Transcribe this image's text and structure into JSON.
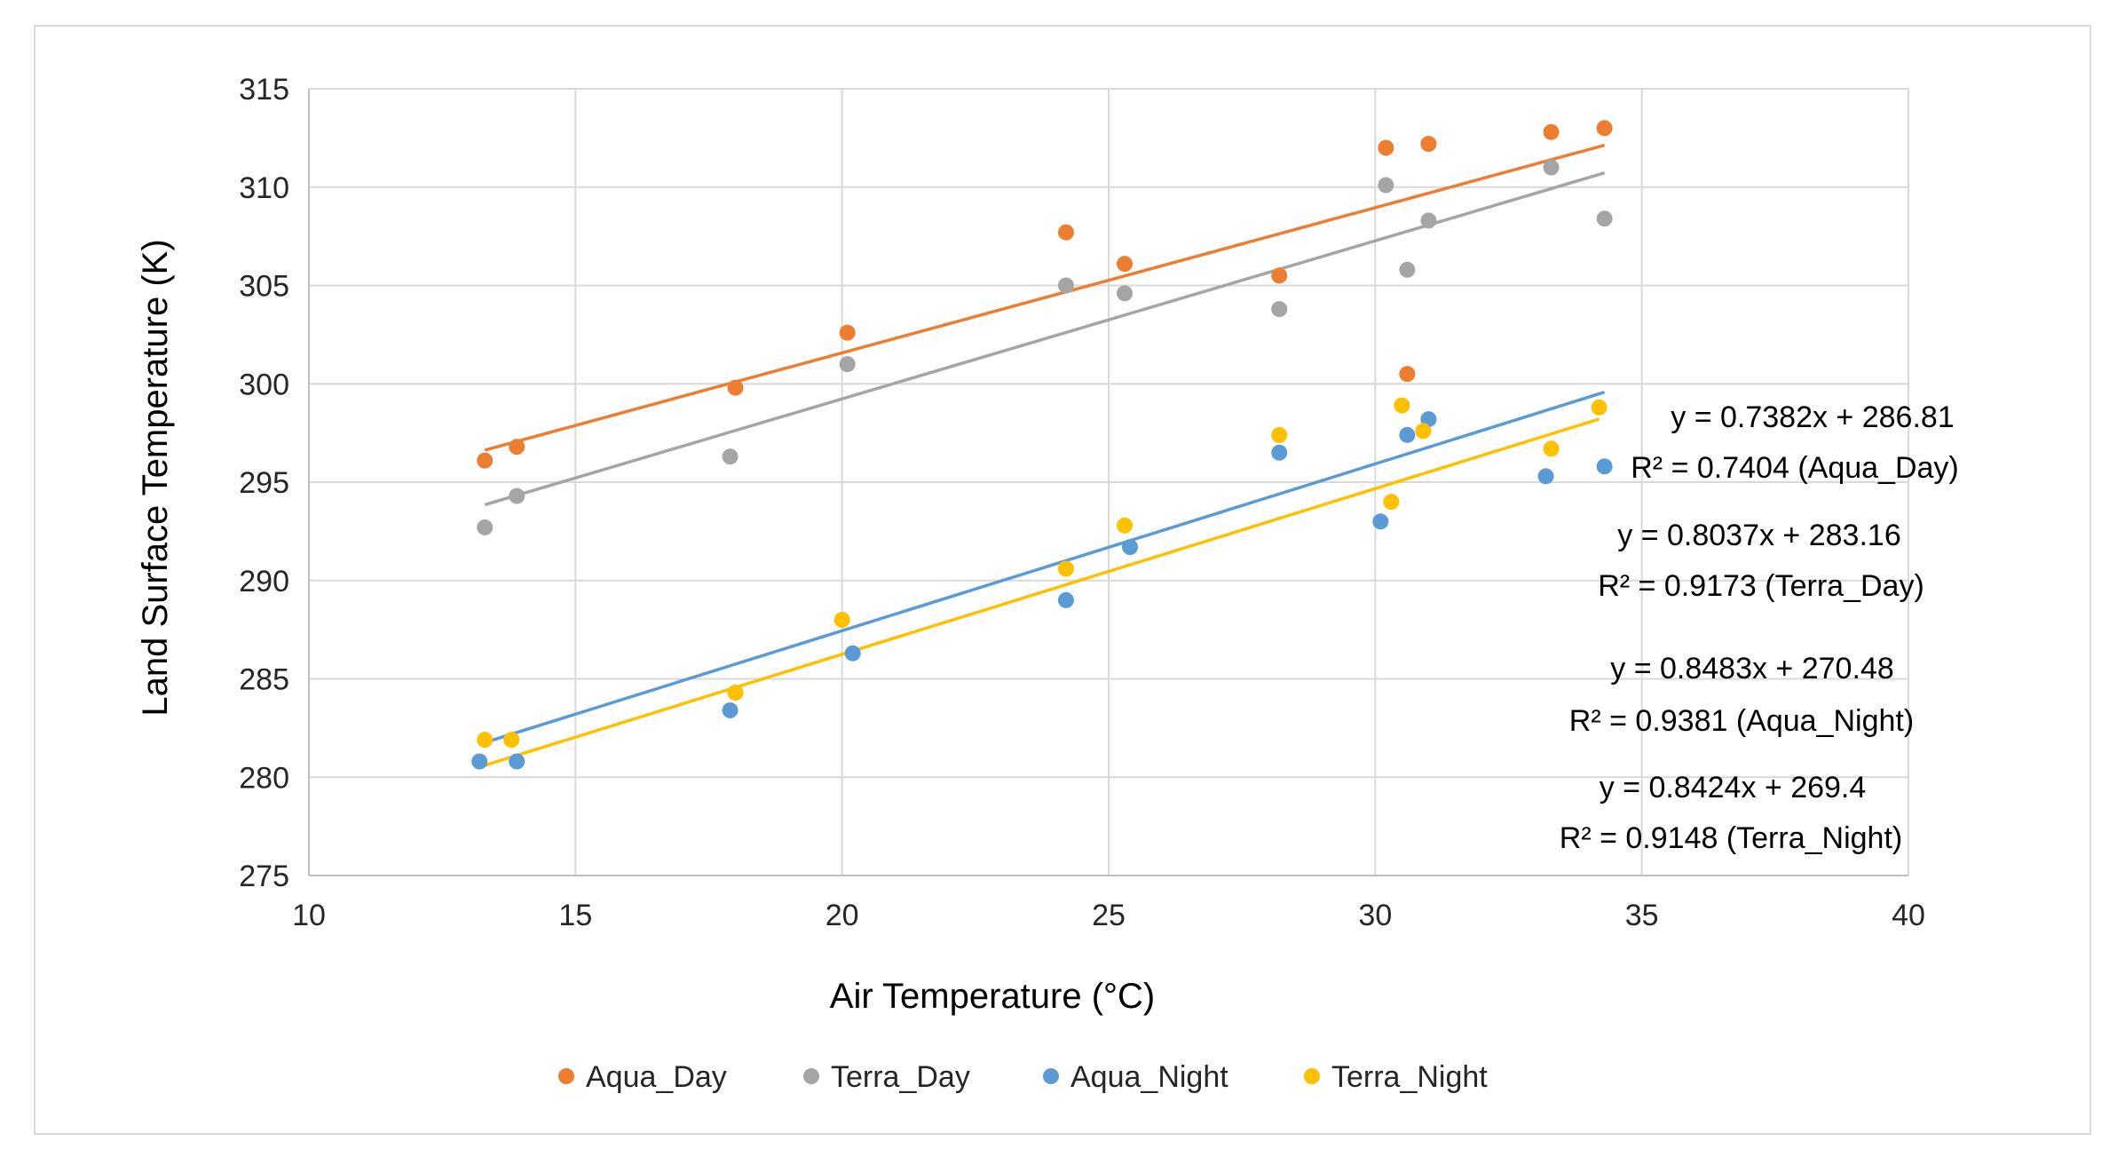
{
  "chart_data": {
    "type": "scatter",
    "title": "",
    "xlabel": "Air Temperature (°C)",
    "ylabel": "Land Surface Temperature (K)",
    "xlim": [
      10,
      40
    ],
    "ylim": [
      275,
      315
    ],
    "xticks": [
      "10",
      "15",
      "20",
      "25",
      "30",
      "35",
      "40"
    ],
    "yticks": [
      "275",
      "280",
      "285",
      "290",
      "295",
      "300",
      "305",
      "310",
      "315"
    ],
    "grid": true,
    "legend_position": "bottom",
    "series": [
      {
        "name": "Aqua_Day",
        "color": "#ed7d31",
        "x": [
          13.3,
          13.9,
          18.0,
          20.1,
          24.2,
          25.3,
          28.2,
          30.2,
          30.6,
          31.0,
          33.3,
          34.3
        ],
        "y": [
          296.1,
          296.8,
          299.8,
          302.6,
          307.7,
          306.1,
          305.5,
          312.0,
          300.5,
          312.2,
          312.8,
          313.0
        ],
        "trendline": {
          "slope": 0.7382,
          "intercept": 286.81,
          "x_range": [
            13.3,
            34.3
          ]
        },
        "equation": "y = 0.7382x + 286.81",
        "r2_label": "R² = 0.7404 (Aqua_Day)"
      },
      {
        "name": "Terra_Day",
        "color": "#a5a5a5",
        "x": [
          13.3,
          13.9,
          17.9,
          20.1,
          24.2,
          25.3,
          28.2,
          30.2,
          30.6,
          31.0,
          33.3,
          34.3
        ],
        "y": [
          292.7,
          294.3,
          296.3,
          301.0,
          305.0,
          304.6,
          303.8,
          310.1,
          305.8,
          308.3,
          311.0,
          308.4
        ],
        "trendline": {
          "slope": 0.8037,
          "intercept": 283.16,
          "x_range": [
            13.3,
            34.3
          ]
        },
        "equation": "y = 0.8037x + 283.16",
        "r2_label": "R² = 0.9173 (Terra_Day)"
      },
      {
        "name": "Aqua_Night",
        "color": "#5b9bd5",
        "x": [
          13.2,
          13.9,
          17.9,
          20.2,
          24.2,
          25.4,
          28.2,
          30.1,
          30.6,
          31.0,
          33.2,
          34.3
        ],
        "y": [
          280.8,
          280.8,
          283.4,
          286.3,
          289.0,
          291.7,
          296.5,
          293.0,
          297.4,
          298.2,
          295.3,
          295.8
        ],
        "trendline": {
          "slope": 0.8483,
          "intercept": 270.48,
          "x_range": [
            13.2,
            34.3
          ]
        },
        "equation": "y = 0.8483x + 270.48",
        "r2_label": "R² = 0.9381 (Aqua_Night)"
      },
      {
        "name": "Terra_Night",
        "color": "#ffc000",
        "x": [
          13.3,
          13.8,
          18.0,
          20.0,
          24.2,
          25.3,
          28.2,
          30.3,
          30.5,
          30.9,
          33.3,
          34.2
        ],
        "y": [
          281.9,
          281.9,
          284.3,
          288.0,
          290.6,
          292.8,
          297.4,
          294.0,
          298.9,
          297.6,
          296.7,
          298.8
        ],
        "trendline": {
          "slope": 0.8424,
          "intercept": 269.4,
          "x_range": [
            13.3,
            34.2
          ]
        },
        "equation": "y = 0.8424x + 269.4",
        "r2_label": "R² = 0.9148 (Terra_Night)"
      }
    ]
  }
}
